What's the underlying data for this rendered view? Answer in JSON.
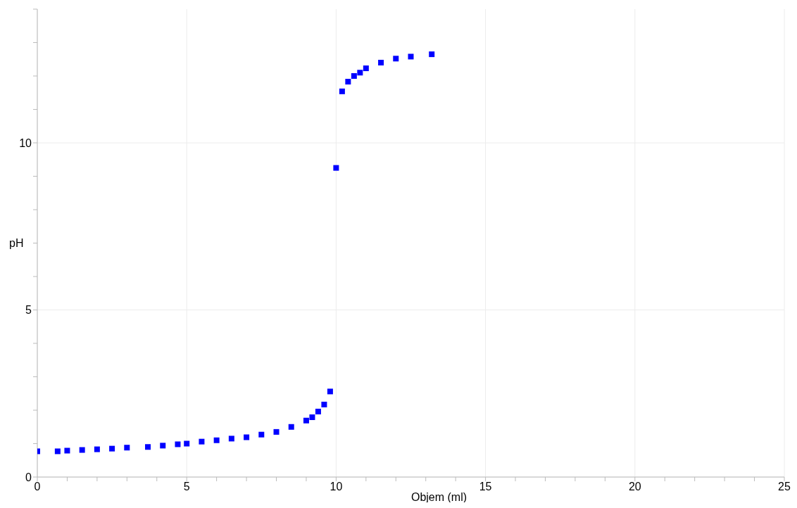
{
  "chart_data": {
    "type": "scatter",
    "xlabel": "Objem (ml)",
    "ylabel": "pH",
    "x": [
      0,
      0.68,
      1,
      1.5,
      2,
      2.5,
      3,
      3.7,
      4.2,
      4.7,
      5,
      5.5,
      6,
      6.5,
      7,
      7.5,
      8,
      8.5,
      9,
      9.2,
      9.4,
      9.6,
      9.8,
      10,
      10.2,
      10.4,
      10.6,
      10.8,
      11,
      11.5,
      12,
      12.5,
      13.2
    ],
    "series": [
      {
        "color": "#0000ff",
        "values": [
          0.77,
          0.77,
          0.79,
          0.81,
          0.83,
          0.85,
          0.88,
          0.9,
          0.94,
          0.98,
          1.0,
          1.06,
          1.1,
          1.15,
          1.19,
          1.27,
          1.35,
          1.5,
          1.69,
          1.79,
          1.96,
          2.17,
          2.56,
          9.25,
          11.54,
          11.83,
          12.0,
          12.1,
          12.23,
          12.4,
          12.52,
          12.58,
          12.65
        ]
      }
    ],
    "marker": "square",
    "grid": true,
    "legend": false,
    "xlim": [
      0,
      25
    ],
    "xticks": [
      0,
      {
        "value": 1,
        "label": null
      },
      {
        "value": 2,
        "label": null
      },
      {
        "value": 3,
        "label": null
      },
      {
        "value": 4,
        "label": null
      },
      5,
      {
        "value": 6,
        "label": null
      },
      {
        "value": 7,
        "label": null
      },
      {
        "value": 8,
        "label": null
      },
      {
        "value": 9,
        "label": null
      },
      10,
      {
        "value": 11,
        "label": null
      },
      {
        "value": 12,
        "label": null
      },
      {
        "value": 13,
        "label": null
      },
      {
        "value": 14,
        "label": null
      },
      15,
      {
        "value": 16,
        "label": null
      },
      {
        "value": 17,
        "label": null
      },
      {
        "value": 18,
        "label": null
      },
      {
        "value": 19,
        "label": null
      },
      20,
      {
        "value": 21,
        "label": null
      },
      {
        "value": 22,
        "label": null
      },
      {
        "value": 23,
        "label": null
      },
      {
        "value": 24,
        "label": null
      },
      25
    ],
    "ylim": [
      0,
      14
    ],
    "yticks": [
      0,
      {
        "value": 1,
        "label": null
      },
      {
        "value": 2,
        "label": null
      },
      {
        "value": 3,
        "label": null
      },
      {
        "value": 4,
        "label": null
      },
      5,
      {
        "value": 6,
        "label": null
      },
      {
        "value": 7,
        "label": null
      },
      {
        "value": 8,
        "label": null
      },
      {
        "value": 9,
        "label": null
      },
      10,
      {
        "value": 11,
        "label": null
      },
      {
        "value": 12,
        "label": null
      },
      {
        "value": 13,
        "label": null
      },
      {
        "value": 14,
        "label": null
      }
    ]
  }
}
